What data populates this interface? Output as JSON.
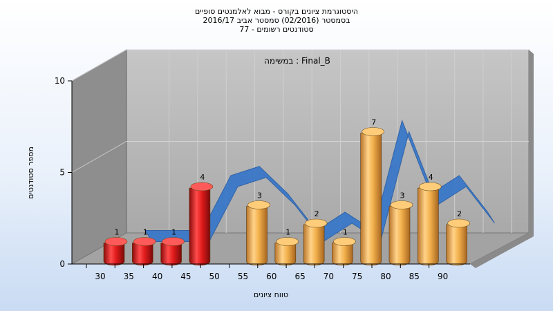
{
  "header": {
    "title_line1": "היסטוגרמת ציונים בקורס - מבוא לאלמנטים סופיים",
    "title_line2": "בסמסטר  (02/2016)  סמסטר אביב 2016/17",
    "title_line3": "סטודנטים רשומים - 77"
  },
  "chart_data": {
    "type": "bar",
    "title": "היסטוגרמת ציונים בקורס - מבוא לאלמנטים סופיים",
    "subtitle": "Final_B : במשימה",
    "xlabel": "טווח ציונים",
    "ylabel": "מספר סטודנטים",
    "categories": [
      "30",
      "35",
      "40",
      "45",
      "50",
      "55",
      "60",
      "65",
      "70",
      "75",
      "80",
      "85",
      "90"
    ],
    "values": [
      1,
      1,
      1,
      4,
      null,
      3,
      1,
      2,
      1,
      7,
      3,
      4,
      2
    ],
    "data_labels": [
      "1",
      "1",
      "1",
      "4",
      "",
      "3",
      "1",
      "2",
      "1",
      "7",
      "3",
      "4",
      "2"
    ],
    "ylim": [
      0,
      10
    ],
    "yticks": [
      "0",
      "5",
      "10"
    ],
    "grid": true,
    "colors": {
      "failing": "#e11b1b",
      "passing": "#f2b04c",
      "ribbon": "#3a78c9",
      "ribbon_back": "#555555",
      "wall": "#b9b9b9",
      "side_wall": "#8c8c8c",
      "floor": "#9e9e9e"
    }
  }
}
